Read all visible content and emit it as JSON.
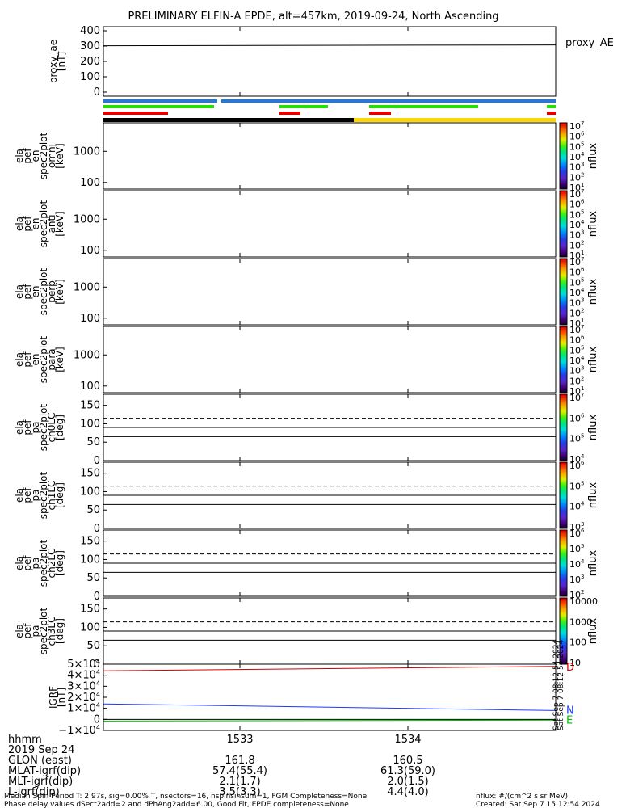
{
  "title": "PRELIMINARY ELFIN-A EPDE, alt=457km, 2019-09-24, North Ascending",
  "colors": {
    "series_ae": "#000000",
    "igrf_d": "#d00000",
    "igrf_n": "#1a3cff",
    "igrf_e": "#00c000",
    "bar_blue": "#1f7ae0",
    "bar_green": "#22e000",
    "bar_red": "#e00000",
    "bar_black": "#000000",
    "bar_yellow": "#ffd700"
  },
  "chart_data": [
    {
      "type": "line",
      "panel": "proxy_ae",
      "ylabel": [
        "proxy_ae",
        "[nT]"
      ],
      "yticks": [
        "400",
        "300",
        "200",
        "100",
        "0"
      ],
      "ylim": [
        0,
        400
      ],
      "legend": "proxy_AE",
      "series": [
        {
          "name": "proxy_AE",
          "x": [
            0,
            1
          ],
          "values": [
            290,
            295
          ]
        }
      ]
    },
    {
      "type": "heatmap",
      "panel": "spec_omni",
      "ylabel": [
        "ela",
        "pef",
        "en",
        "spec2plot",
        "omni",
        "[keV]"
      ],
      "yticks": [
        "1000",
        "100"
      ],
      "colorbar": {
        "label": "nflux",
        "ticks": [
          "10^7",
          "10^6",
          "10^5",
          "10^4",
          "10^3",
          "10^2",
          "10^1"
        ]
      }
    },
    {
      "type": "heatmap",
      "panel": "spec_anti",
      "ylabel": [
        "ela",
        "pef",
        "en",
        "spec2plot",
        "anti",
        "[keV]"
      ],
      "yticks": [
        "1000",
        "100"
      ],
      "colorbar": {
        "label": "nflux",
        "ticks": [
          "10^7",
          "10^6",
          "10^5",
          "10^4",
          "10^3",
          "10^2",
          "10^1"
        ]
      }
    },
    {
      "type": "heatmap",
      "panel": "spec_perp",
      "ylabel": [
        "ela",
        "pef",
        "en",
        "spec2plot",
        "perp",
        "[keV]"
      ],
      "yticks": [
        "1000",
        "100"
      ],
      "colorbar": {
        "label": "nflux",
        "ticks": [
          "10^7",
          "10^6",
          "10^5",
          "10^4",
          "10^3",
          "10^2",
          "10^1"
        ]
      }
    },
    {
      "type": "heatmap",
      "panel": "spec_para",
      "ylabel": [
        "ela",
        "pef",
        "en",
        "spec2plot",
        "para",
        "[keV]"
      ],
      "yticks": [
        "1000",
        "100"
      ],
      "colorbar": {
        "label": "nflux",
        "ticks": [
          "10^7",
          "10^6",
          "10^5",
          "10^4",
          "10^3",
          "10^2",
          "10^1"
        ]
      }
    },
    {
      "type": "heatmap",
      "panel": "pa_ch0",
      "ylabel": [
        "ela",
        "pef",
        "pa",
        "spec2plot",
        "ch0LC",
        "[deg]"
      ],
      "yticks": [
        "150",
        "100",
        "50",
        "0"
      ],
      "ylim": [
        0,
        180
      ],
      "refs": {
        "solid": [
          90,
          65
        ],
        "dashed": [
          115
        ]
      },
      "colorbar": {
        "label": "nflux",
        "ticks": [
          "10^7",
          "10^6",
          "10^5",
          "10^4"
        ]
      }
    },
    {
      "type": "heatmap",
      "panel": "pa_ch1",
      "ylabel": [
        "ela",
        "pef",
        "pa",
        "spec2plot",
        "ch1LC",
        "[deg]"
      ],
      "yticks": [
        "150",
        "100",
        "50",
        "0"
      ],
      "ylim": [
        0,
        180
      ],
      "refs": {
        "solid": [
          90,
          65
        ],
        "dashed": [
          115
        ]
      },
      "colorbar": {
        "label": "nflux",
        "ticks": [
          "10^6",
          "10^5",
          "10^4",
          "10^3"
        ]
      }
    },
    {
      "type": "heatmap",
      "panel": "pa_ch2",
      "ylabel": [
        "ela",
        "pef",
        "pa",
        "spec2plot",
        "ch2LC",
        "[deg]"
      ],
      "yticks": [
        "150",
        "100",
        "50",
        "0"
      ],
      "ylim": [
        0,
        180
      ],
      "refs": {
        "solid": [
          90,
          65
        ],
        "dashed": [
          115
        ]
      },
      "colorbar": {
        "label": "nflux",
        "ticks": [
          "10^6",
          "10^5",
          "10^4",
          "10^3",
          "10^2"
        ]
      }
    },
    {
      "type": "heatmap",
      "panel": "pa_ch3",
      "ylabel": [
        "ela",
        "pef",
        "pa",
        "spec2plot",
        "ch3LC",
        "[deg]"
      ],
      "yticks": [
        "150",
        "100",
        "50",
        "0"
      ],
      "ylim": [
        0,
        180
      ],
      "refs": {
        "solid": [
          90,
          65
        ],
        "dashed": [
          115
        ]
      },
      "colorbar": {
        "label": "nflux",
        "ticks": [
          "10000",
          "1000",
          "100",
          "10"
        ]
      }
    },
    {
      "type": "line",
      "panel": "igrf",
      "ylabel": [
        "IGRF",
        "[nT]"
      ],
      "yticks": [
        "5×10^4",
        "4×10^4",
        "3×10^4",
        "2×10^4",
        "1×10^4",
        "0",
        "−1×10^4"
      ],
      "ylim": [
        -10000,
        50000
      ],
      "series": [
        {
          "name": "D",
          "x": [
            0,
            1
          ],
          "values": [
            44000,
            48000
          ]
        },
        {
          "name": "N",
          "x": [
            0,
            1
          ],
          "values": [
            14000,
            8000
          ]
        },
        {
          "name": "E",
          "x": [
            0,
            1
          ],
          "values": [
            -1500,
            -700
          ]
        }
      ],
      "sidetext": [
        "Sat Sep  7 08:12:54 2024",
        "Sat Sep  7 08:12:54 2024"
      ]
    }
  ],
  "xaxis": {
    "row_labels": [
      "hhmm",
      "2019 Sep 24",
      "GLON (east)",
      "MLAT-igrf(dip)",
      "MLT-igrf(dip)",
      "L-igrf(dip)"
    ],
    "columns": [
      {
        "values": [
          "1533",
          "",
          "161.8",
          "57.4(55.4)",
          "2.1(1.7)",
          "3.5(3.3)"
        ]
      },
      {
        "values": [
          "1534",
          "",
          "160.5",
          "61.3(59.0)",
          "2.0(1.5)",
          "4.4(4.0)"
        ]
      }
    ]
  },
  "footer": {
    "left1": "Median Spin Period T: 2.97s, sig=0.00% T, nsectors=16, nspinsinsum=1, FGM Completeness=None",
    "left2": "Phase delay values dSect2add=2 and dPhAng2add=6.00, Good Fit, EPDE completeness=None",
    "right1": "nflux: #/(cm^2 s sr MeV)",
    "right2": "Created: Sat Sep  7 15:12:54 2024"
  }
}
